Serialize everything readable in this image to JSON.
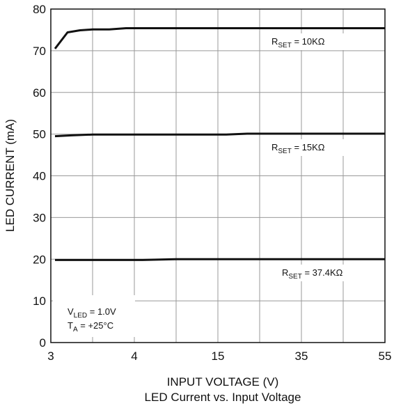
{
  "chart_data": {
    "type": "line",
    "title": "LED Current vs. Input Voltage",
    "xlabel": "INPUT VOLTAGE (V)",
    "ylabel": "LED CURRENT (mA)",
    "x_tick_labels": [
      "3",
      "4",
      "15",
      "35",
      "55"
    ],
    "y_ticks": [
      0,
      10,
      20,
      30,
      40,
      50,
      60,
      70,
      80
    ],
    "ylim": [
      0,
      80
    ],
    "grid": true,
    "colors": {
      "line": "#111111",
      "grid": "#999999",
      "frame": "#111111"
    },
    "series": [
      {
        "label": "10KΩ",
        "points": [
          [
            0.1,
            70.5
          ],
          [
            0.4,
            74.4
          ],
          [
            0.7,
            74.9
          ],
          [
            1.0,
            75.1
          ],
          [
            1.4,
            75.1
          ],
          [
            1.8,
            75.4
          ],
          [
            2.5,
            75.4
          ],
          [
            3.5,
            75.4
          ],
          [
            5.0,
            75.4
          ],
          [
            7.0,
            75.4
          ],
          [
            8.0,
            75.4
          ]
        ]
      },
      {
        "label": "15KΩ",
        "points": [
          [
            0.1,
            49.5
          ],
          [
            0.5,
            49.7
          ],
          [
            1.0,
            49.9
          ],
          [
            2.0,
            49.9
          ],
          [
            3.0,
            49.9
          ],
          [
            4.2,
            49.9
          ],
          [
            4.7,
            50.1
          ],
          [
            6.0,
            50.1
          ],
          [
            7.0,
            50.1
          ],
          [
            8.0,
            50.1
          ]
        ]
      },
      {
        "label": "37.4KΩ",
        "points": [
          [
            0.1,
            19.8
          ],
          [
            1.0,
            19.8
          ],
          [
            2.2,
            19.8
          ],
          [
            3.0,
            20.0
          ],
          [
            4.0,
            20.0
          ],
          [
            5.0,
            20.0
          ],
          [
            6.0,
            20.0
          ],
          [
            7.0,
            20.0
          ],
          [
            8.0,
            20.0
          ]
        ]
      }
    ],
    "conditions": [
      {
        "symbol": "V",
        "subscript": "LED",
        "value": " = 1.0V"
      },
      {
        "symbol": "T",
        "subscript": "A",
        "value": " = +25°C"
      }
    ],
    "series_prefix": {
      "symbol": "R",
      "subscript": "SET",
      "eq": " = "
    }
  }
}
